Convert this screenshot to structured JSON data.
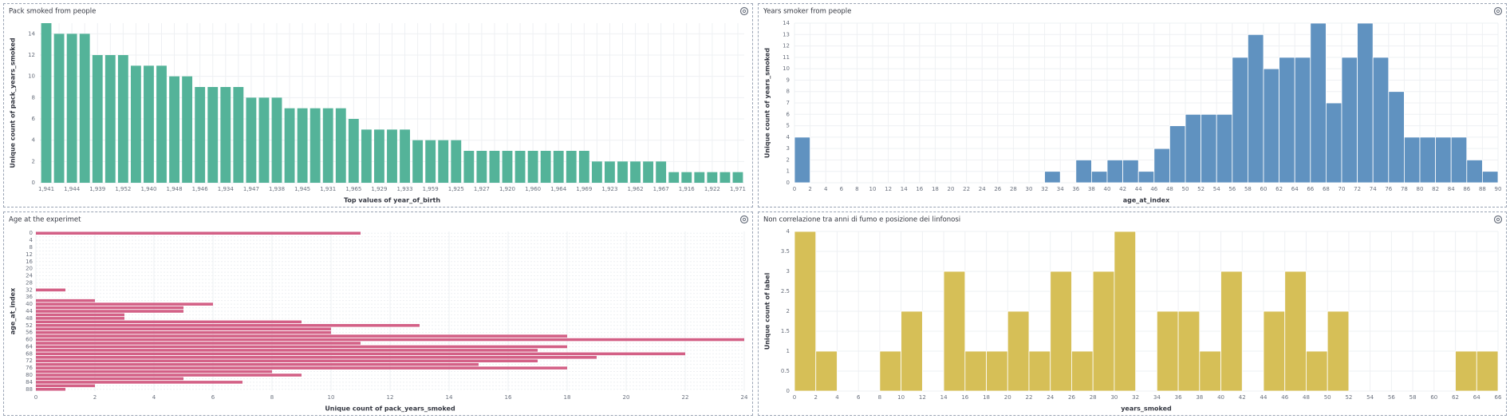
{
  "chart_data": [
    {
      "type": "bar",
      "title": "Pack smoked from people",
      "xlabel": "Top values of year_of_birth",
      "ylabel": "Unique count of pack_years_smoked",
      "color": "#54b399",
      "grid": true,
      "categories": [
        "1,941",
        null,
        "1,944",
        null,
        "1,939",
        null,
        "1,952",
        null,
        "1,940",
        null,
        "1,948",
        null,
        "1,946",
        null,
        "1,934",
        null,
        "1,947",
        null,
        "1,938",
        null,
        "1,945",
        null,
        "1,931",
        null,
        "1,965",
        null,
        "1,929",
        null,
        "1,933",
        null,
        "1,959",
        null,
        "1,925",
        null,
        "1,927",
        null,
        "1,920",
        null,
        "1,960",
        null,
        "1,964",
        null,
        "1,969",
        null,
        "1,923",
        null,
        "1,962",
        null,
        "1,967",
        null,
        "1,916",
        null,
        "1,922",
        null,
        "1,971"
      ],
      "values": [
        15,
        14,
        14,
        14,
        12,
        12,
        12,
        11,
        11,
        11,
        10,
        10,
        9,
        9,
        9,
        9,
        8,
        8,
        8,
        7,
        7,
        7,
        7,
        7,
        6,
        5,
        5,
        5,
        5,
        4,
        4,
        4,
        4,
        3,
        3,
        3,
        3,
        3,
        3,
        3,
        3,
        3,
        3,
        2,
        2,
        2,
        2,
        2,
        2,
        1,
        1,
        1,
        1,
        1,
        1
      ],
      "ylim": [
        0,
        15
      ],
      "yticks": [
        0,
        2,
        4,
        6,
        8,
        10,
        12,
        14
      ]
    },
    {
      "type": "histogram",
      "title": "Years smoker from people",
      "xlabel": "age_at_index",
      "ylabel": "Unique count of years_smoked",
      "color": "#6092c0",
      "grid": true,
      "bins": [
        0,
        2,
        4,
        6,
        8,
        10,
        12,
        14,
        16,
        18,
        20,
        22,
        24,
        26,
        28,
        30,
        32,
        34,
        36,
        38,
        40,
        42,
        44,
        46,
        48,
        50,
        52,
        54,
        56,
        58,
        60,
        62,
        64,
        66,
        68,
        70,
        72,
        74,
        76,
        78,
        80,
        82,
        84,
        86,
        88,
        90
      ],
      "values": [
        4,
        0,
        0,
        0,
        0,
        0,
        0,
        0,
        0,
        0,
        0,
        0,
        0,
        0,
        0,
        0,
        1,
        0,
        2,
        1,
        2,
        2,
        1,
        3,
        5,
        6,
        6,
        6,
        11,
        13,
        10,
        11,
        11,
        14,
        7,
        11,
        14,
        11,
        8,
        4,
        4,
        4,
        4,
        2,
        1
      ],
      "xlim": [
        0,
        90
      ],
      "xticks": [
        0,
        2,
        4,
        6,
        8,
        10,
        12,
        14,
        16,
        18,
        20,
        22,
        24,
        26,
        28,
        30,
        32,
        34,
        36,
        38,
        40,
        42,
        44,
        46,
        48,
        50,
        52,
        54,
        56,
        58,
        60,
        62,
        64,
        66,
        68,
        70,
        72,
        74,
        76,
        78,
        80,
        82,
        84,
        86,
        88,
        90
      ],
      "ylim": [
        0,
        14
      ],
      "yticks": [
        0,
        1,
        2,
        3,
        4,
        5,
        6,
        7,
        8,
        9,
        10,
        11,
        12,
        13,
        14
      ]
    },
    {
      "type": "barh",
      "title": "Age at the experimet",
      "xlabel": "Unique count of pack_years_smoked",
      "ylabel": "age_at_index",
      "color": "#d36086",
      "grid": true,
      "categories": [
        0,
        null,
        4,
        null,
        8,
        null,
        12,
        null,
        16,
        null,
        20,
        null,
        24,
        null,
        28,
        null,
        32,
        null,
        36,
        null,
        40,
        null,
        44,
        null,
        48,
        null,
        52,
        null,
        56,
        null,
        60,
        null,
        64,
        null,
        68,
        null,
        72,
        null,
        76,
        null,
        80,
        null,
        84,
        null,
        88
      ],
      "values": [
        11,
        null,
        null,
        null,
        null,
        null,
        null,
        null,
        null,
        null,
        null,
        null,
        null,
        null,
        null,
        null,
        1,
        null,
        null,
        2,
        6,
        5,
        5,
        3,
        3,
        9,
        13,
        10,
        10,
        18,
        24,
        11,
        18,
        17,
        22,
        19,
        17,
        15,
        18,
        8,
        9,
        5,
        7,
        2,
        1
      ],
      "xlim": [
        0,
        24
      ],
      "xticks": [
        0,
        2,
        4,
        6,
        8,
        10,
        12,
        14,
        16,
        18,
        20,
        22,
        24
      ]
    },
    {
      "type": "histogram",
      "title": "Non correlazione tra anni di fumo e posizione dei linfonosi",
      "xlabel": "years_smoked",
      "ylabel": "Unique count of label",
      "color": "#d6bf57",
      "grid": true,
      "bins": [
        0,
        2,
        4,
        6,
        8,
        10,
        12,
        14,
        16,
        18,
        20,
        22,
        24,
        26,
        28,
        30,
        32,
        34,
        36,
        38,
        40,
        42,
        44,
        46,
        48,
        50,
        52,
        54,
        56,
        58,
        60,
        62,
        64,
        66
      ],
      "values": [
        4,
        1,
        0,
        0,
        1,
        2,
        0,
        3,
        1,
        1,
        2,
        1,
        3,
        1,
        3,
        4,
        0,
        2,
        2,
        1,
        3,
        0,
        2,
        3,
        1,
        2,
        0,
        0,
        0,
        0,
        0,
        1,
        1
      ],
      "xlim": [
        0,
        66
      ],
      "xticks": [
        0,
        2,
        4,
        6,
        8,
        10,
        12,
        14,
        16,
        18,
        20,
        22,
        24,
        26,
        28,
        30,
        32,
        34,
        36,
        38,
        40,
        42,
        44,
        46,
        48,
        50,
        52,
        54,
        56,
        58,
        60,
        62,
        64,
        66
      ],
      "ylim": [
        0,
        4
      ],
      "yticks": [
        0,
        0.5,
        1,
        1.5,
        2,
        2.5,
        3,
        3.5,
        4
      ]
    }
  ]
}
